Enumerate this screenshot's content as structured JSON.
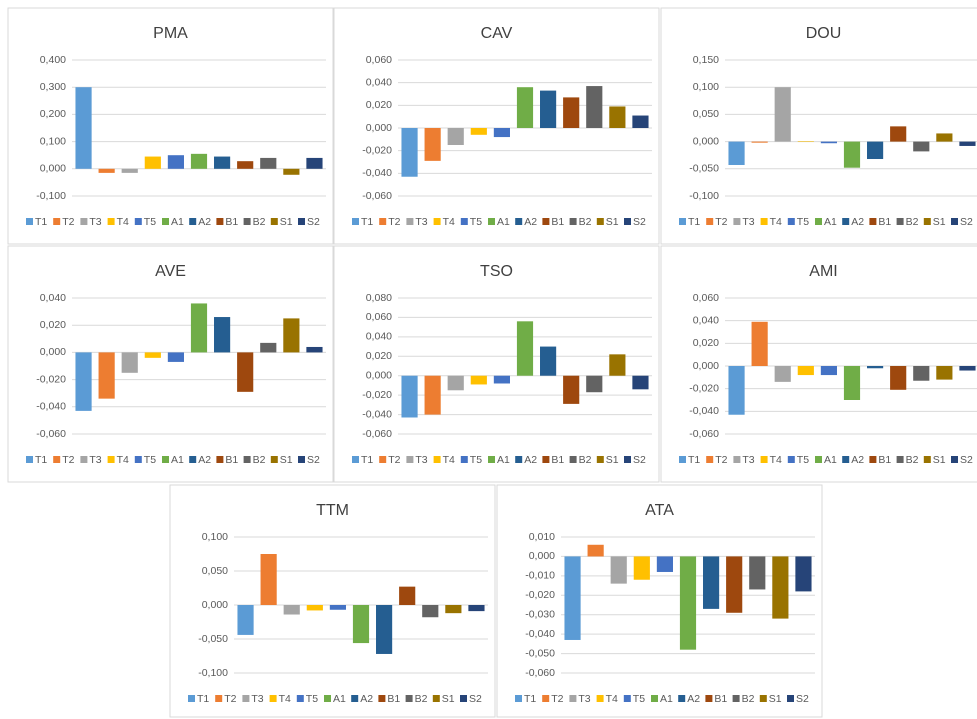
{
  "chart_data": [
    {
      "type": "bar",
      "title": "PMA",
      "categories": [
        "T1",
        "T2",
        "T3",
        "T4",
        "T5",
        "A1",
        "A2",
        "B1",
        "B2",
        "S1",
        "S2"
      ],
      "colors": [
        "#5b9bd5",
        "#ed7d31",
        "#a5a5a5",
        "#ffc000",
        "#4472c4",
        "#70ad47",
        "#255e91",
        "#9e480e",
        "#636363",
        "#997300",
        "#264478"
      ],
      "values": [
        0.3,
        -0.015,
        -0.015,
        0.045,
        0.05,
        0.055,
        0.045,
        0.028,
        0.04,
        -0.022,
        0.04
      ],
      "ylim": [
        -0.1,
        0.4
      ],
      "yticks": [
        {
          "value": -0.1,
          "label": "-0,100"
        },
        {
          "value": 0,
          "label": "0,000"
        },
        {
          "value": 0.1,
          "label": "0,100"
        },
        {
          "value": 0.2,
          "label": "0,200"
        },
        {
          "value": 0.3,
          "label": "0,300"
        },
        {
          "value": 0.4,
          "label": "0,400"
        }
      ]
    },
    {
      "type": "bar",
      "title": "CAV",
      "categories": [
        "T1",
        "T2",
        "T3",
        "T4",
        "T5",
        "A1",
        "A2",
        "B1",
        "B2",
        "S1",
        "S2"
      ],
      "colors": [
        "#5b9bd5",
        "#ed7d31",
        "#a5a5a5",
        "#ffc000",
        "#4472c4",
        "#70ad47",
        "#255e91",
        "#9e480e",
        "#636363",
        "#997300",
        "#264478"
      ],
      "values": [
        -0.043,
        -0.029,
        -0.015,
        -0.006,
        -0.008,
        0.036,
        0.033,
        0.027,
        0.037,
        0.019,
        0.011
      ],
      "ylim": [
        -0.06,
        0.06
      ],
      "yticks": [
        {
          "value": -0.06,
          "label": "-0,060"
        },
        {
          "value": -0.04,
          "label": "-0,040"
        },
        {
          "value": -0.02,
          "label": "-0,020"
        },
        {
          "value": 0,
          "label": "0,000"
        },
        {
          "value": 0.02,
          "label": "0,020"
        },
        {
          "value": 0.04,
          "label": "0,040"
        },
        {
          "value": 0.06,
          "label": "0,060"
        }
      ]
    },
    {
      "type": "bar",
      "title": "DOU",
      "categories": [
        "T1",
        "T2",
        "T3",
        "T4",
        "T5",
        "A1",
        "A2",
        "B1",
        "B2",
        "S1",
        "S2"
      ],
      "colors": [
        "#5b9bd5",
        "#ed7d31",
        "#a5a5a5",
        "#ffc000",
        "#4472c4",
        "#70ad47",
        "#255e91",
        "#9e480e",
        "#636363",
        "#997300",
        "#264478"
      ],
      "values": [
        -0.043,
        -0.002,
        0.1,
        0.001,
        -0.003,
        -0.048,
        -0.032,
        0.028,
        -0.018,
        0.015,
        -0.008
      ],
      "ylim": [
        -0.1,
        0.15
      ],
      "yticks": [
        {
          "value": -0.1,
          "label": "-0,100"
        },
        {
          "value": -0.05,
          "label": "-0,050"
        },
        {
          "value": 0,
          "label": "0,000"
        },
        {
          "value": 0.05,
          "label": "0,050"
        },
        {
          "value": 0.1,
          "label": "0,100"
        },
        {
          "value": 0.15,
          "label": "0,150"
        }
      ]
    },
    {
      "type": "bar",
      "title": "AVE",
      "categories": [
        "T1",
        "T2",
        "T3",
        "T4",
        "T5",
        "A1",
        "A2",
        "B1",
        "B2",
        "S1",
        "S2"
      ],
      "colors": [
        "#5b9bd5",
        "#ed7d31",
        "#a5a5a5",
        "#ffc000",
        "#4472c4",
        "#70ad47",
        "#255e91",
        "#9e480e",
        "#636363",
        "#997300",
        "#264478"
      ],
      "values": [
        -0.043,
        -0.034,
        -0.015,
        -0.004,
        -0.007,
        0.036,
        0.026,
        -0.029,
        0.007,
        0.025,
        0.004
      ],
      "ylim": [
        -0.06,
        0.04
      ],
      "yticks": [
        {
          "value": -0.06,
          "label": "-0,060"
        },
        {
          "value": -0.04,
          "label": "-0,040"
        },
        {
          "value": -0.02,
          "label": "-0,020"
        },
        {
          "value": 0,
          "label": "0,000"
        },
        {
          "value": 0.02,
          "label": "0,020"
        },
        {
          "value": 0.04,
          "label": "0,040"
        }
      ]
    },
    {
      "type": "bar",
      "title": "TSO",
      "categories": [
        "T1",
        "T2",
        "T3",
        "T4",
        "T5",
        "A1",
        "A2",
        "B1",
        "B2",
        "S1",
        "S2"
      ],
      "colors": [
        "#5b9bd5",
        "#ed7d31",
        "#a5a5a5",
        "#ffc000",
        "#4472c4",
        "#70ad47",
        "#255e91",
        "#9e480e",
        "#636363",
        "#997300",
        "#264478"
      ],
      "values": [
        -0.043,
        -0.04,
        -0.015,
        -0.009,
        -0.008,
        0.056,
        0.03,
        -0.029,
        -0.017,
        0.022,
        -0.014
      ],
      "ylim": [
        -0.06,
        0.08
      ],
      "yticks": [
        {
          "value": -0.06,
          "label": "-0,060"
        },
        {
          "value": -0.04,
          "label": "-0,040"
        },
        {
          "value": -0.02,
          "label": "-0,020"
        },
        {
          "value": 0,
          "label": "0,000"
        },
        {
          "value": 0.02,
          "label": "0,020"
        },
        {
          "value": 0.04,
          "label": "0,040"
        },
        {
          "value": 0.06,
          "label": "0,060"
        },
        {
          "value": 0.08,
          "label": "0,080"
        }
      ]
    },
    {
      "type": "bar",
      "title": "AMI",
      "categories": [
        "T1",
        "T2",
        "T3",
        "T4",
        "T5",
        "A1",
        "A2",
        "B1",
        "B2",
        "S1",
        "S2"
      ],
      "colors": [
        "#5b9bd5",
        "#ed7d31",
        "#a5a5a5",
        "#ffc000",
        "#4472c4",
        "#70ad47",
        "#255e91",
        "#9e480e",
        "#636363",
        "#997300",
        "#264478"
      ],
      "values": [
        -0.043,
        0.039,
        -0.014,
        -0.008,
        -0.008,
        -0.03,
        -0.002,
        -0.021,
        -0.013,
        -0.012,
        -0.004
      ],
      "ylim": [
        -0.06,
        0.06
      ],
      "yticks": [
        {
          "value": -0.06,
          "label": "-0,060"
        },
        {
          "value": -0.04,
          "label": "-0,040"
        },
        {
          "value": -0.02,
          "label": "-0,020"
        },
        {
          "value": 0,
          "label": "0,000"
        },
        {
          "value": 0.02,
          "label": "0,020"
        },
        {
          "value": 0.04,
          "label": "0,040"
        },
        {
          "value": 0.06,
          "label": "0,060"
        }
      ]
    },
    {
      "type": "bar",
      "title": "TTM",
      "categories": [
        "T1",
        "T2",
        "T3",
        "T4",
        "T5",
        "A1",
        "A2",
        "B1",
        "B2",
        "S1",
        "S2"
      ],
      "colors": [
        "#5b9bd5",
        "#ed7d31",
        "#a5a5a5",
        "#ffc000",
        "#4472c4",
        "#70ad47",
        "#255e91",
        "#9e480e",
        "#636363",
        "#997300",
        "#264478"
      ],
      "values": [
        -0.044,
        0.075,
        -0.014,
        -0.008,
        -0.007,
        -0.056,
        -0.072,
        0.027,
        -0.018,
        -0.012,
        -0.009
      ],
      "ylim": [
        -0.1,
        0.1
      ],
      "yticks": [
        {
          "value": -0.1,
          "label": "-0,100"
        },
        {
          "value": -0.05,
          "label": "-0,050"
        },
        {
          "value": 0,
          "label": "0,000"
        },
        {
          "value": 0.05,
          "label": "0,050"
        },
        {
          "value": 0.1,
          "label": "0,100"
        }
      ]
    },
    {
      "type": "bar",
      "title": "ATA",
      "categories": [
        "T1",
        "T2",
        "T3",
        "T4",
        "T5",
        "A1",
        "A2",
        "B1",
        "B2",
        "S1",
        "S2"
      ],
      "colors": [
        "#5b9bd5",
        "#ed7d31",
        "#a5a5a5",
        "#ffc000",
        "#4472c4",
        "#70ad47",
        "#255e91",
        "#9e480e",
        "#636363",
        "#997300",
        "#264478"
      ],
      "values": [
        -0.043,
        0.006,
        -0.014,
        -0.012,
        -0.008,
        -0.048,
        -0.027,
        -0.029,
        -0.017,
        -0.032,
        -0.018
      ],
      "ylim": [
        -0.06,
        0.01
      ],
      "yticks": [
        {
          "value": -0.06,
          "label": "-0,060"
        },
        {
          "value": -0.05,
          "label": "-0,050"
        },
        {
          "value": -0.04,
          "label": "-0,040"
        },
        {
          "value": -0.03,
          "label": "-0,030"
        },
        {
          "value": -0.02,
          "label": "-0,020"
        },
        {
          "value": -0.01,
          "label": "-0,010"
        },
        {
          "value": 0,
          "label": "0,000"
        },
        {
          "value": 0.01,
          "label": "0,010"
        }
      ]
    }
  ]
}
